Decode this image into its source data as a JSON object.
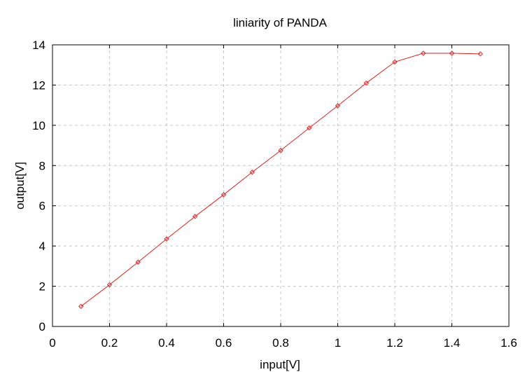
{
  "chart_data": {
    "type": "line",
    "title": "liniarity of PANDA",
    "xlabel": "input[V]",
    "ylabel": "output[V]",
    "xlim": [
      0,
      1.6
    ],
    "ylim": [
      0,
      14
    ],
    "xticks": [
      "0",
      "0.2",
      "0.4",
      "0.6",
      "0.8",
      "1",
      "1.2",
      "1.4",
      "1.6"
    ],
    "yticks": [
      "0",
      "2",
      "4",
      "6",
      "8",
      "10",
      "12",
      "14"
    ],
    "grid": true,
    "series": [
      {
        "color": "#e02020",
        "marker": "diamond",
        "x": [
          0.1,
          0.2,
          0.3,
          0.4,
          0.5,
          0.6,
          0.7,
          0.8,
          0.9,
          1.0,
          1.1,
          1.2,
          1.3,
          1.4,
          1.5
        ],
        "y": [
          1.0,
          2.07,
          3.2,
          4.35,
          5.47,
          6.55,
          7.67,
          8.75,
          9.87,
          10.97,
          12.1,
          13.15,
          13.58,
          13.58,
          13.55
        ]
      }
    ]
  }
}
